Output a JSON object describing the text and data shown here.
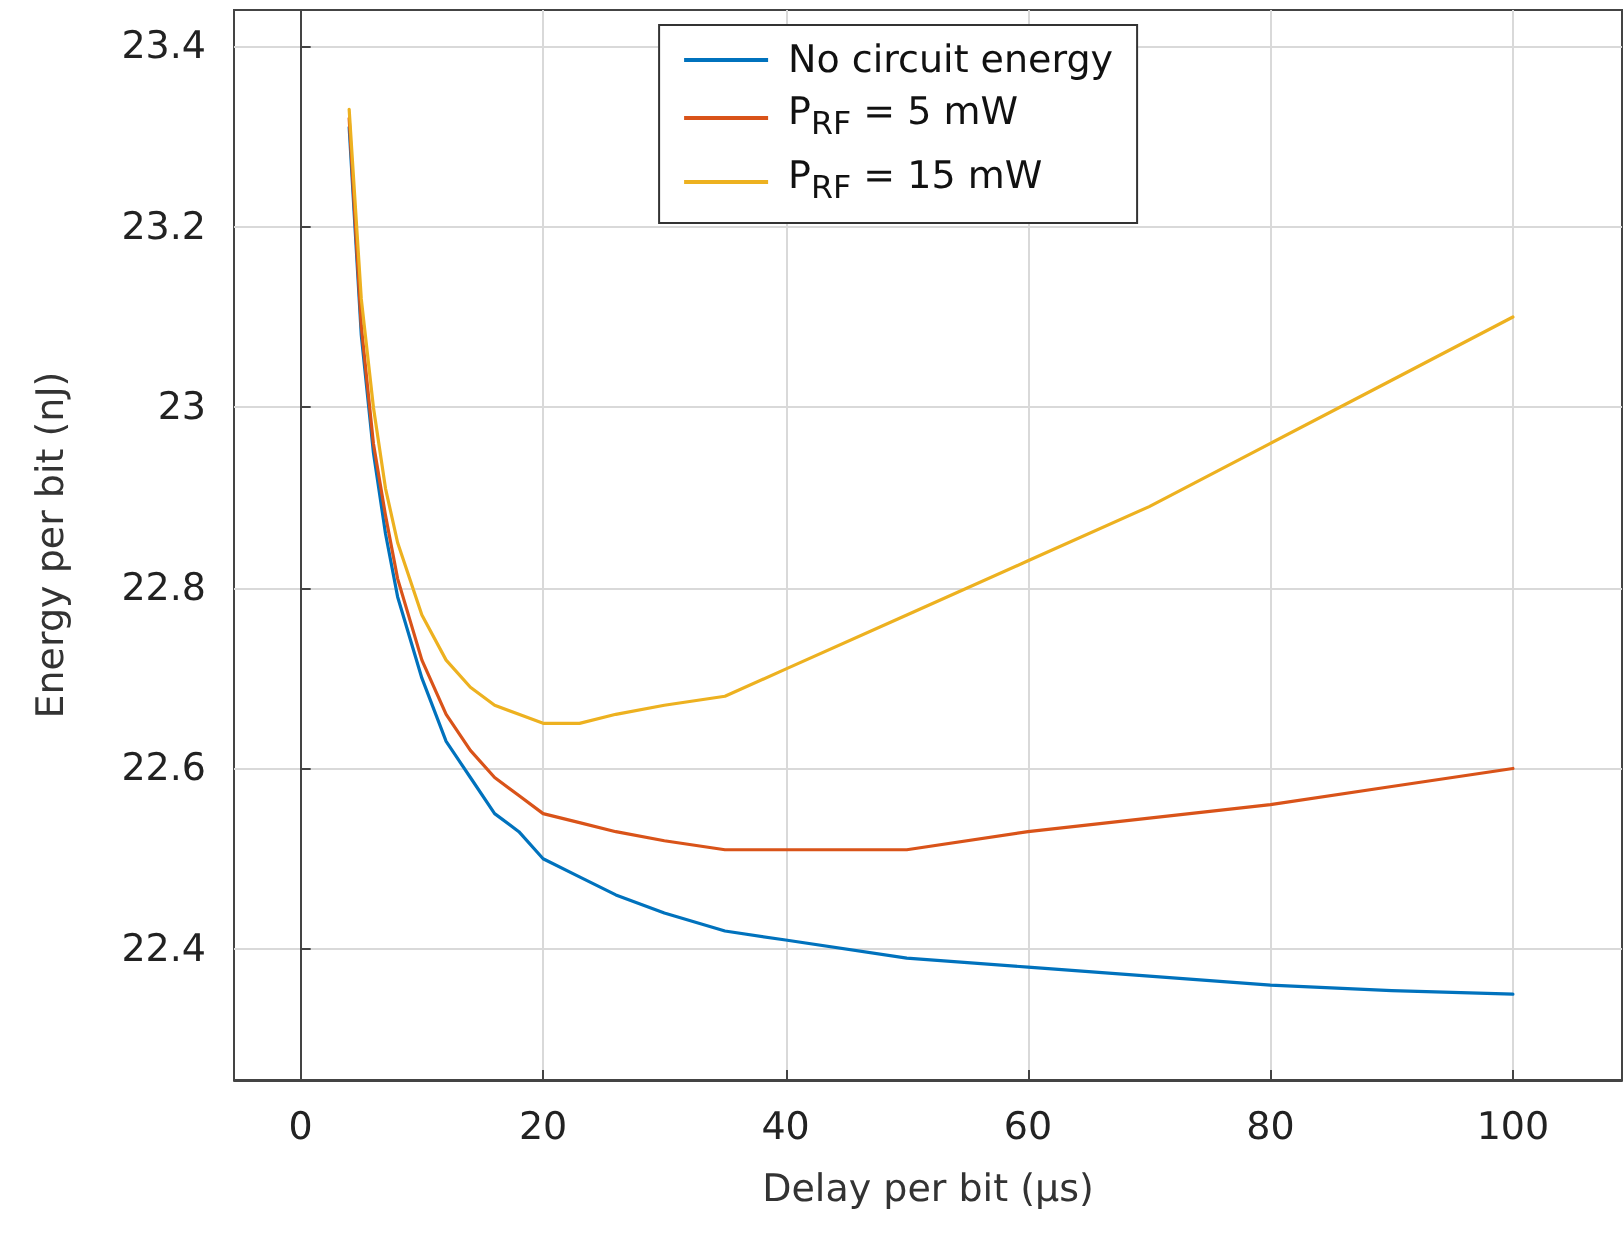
{
  "chart_data": {
    "type": "line",
    "xlabel": "Delay per bit (μs)",
    "ylabel": "Energy per bit (nJ)",
    "x": [
      4,
      5,
      6,
      7,
      8,
      10,
      12,
      14,
      16,
      18,
      20,
      23,
      26,
      30,
      35,
      40,
      50,
      60,
      70,
      80,
      90,
      100
    ],
    "series": [
      {
        "name": "No circuit energy",
        "color": "#0072bd",
        "values": [
          23.31,
          23.08,
          22.95,
          22.86,
          22.79,
          22.7,
          22.63,
          22.59,
          22.55,
          22.53,
          22.5,
          22.48,
          22.46,
          22.44,
          22.42,
          22.41,
          22.39,
          22.38,
          22.37,
          22.36,
          22.354,
          22.35
        ]
      },
      {
        "name": "P$_{RF}$ = 5 mW",
        "color": "#d95319",
        "values": [
          23.32,
          23.09,
          22.96,
          22.88,
          22.81,
          22.72,
          22.66,
          22.62,
          22.59,
          22.57,
          22.55,
          22.54,
          22.53,
          22.52,
          22.51,
          22.51,
          22.51,
          22.53,
          22.545,
          22.56,
          22.58,
          22.6
        ]
      },
      {
        "name": "P$_{RF}$ = 15 mW",
        "color": "#edb120",
        "values": [
          23.33,
          23.12,
          23.0,
          22.91,
          22.85,
          22.77,
          22.72,
          22.69,
          22.67,
          22.66,
          22.65,
          22.65,
          22.66,
          22.67,
          22.68,
          22.71,
          22.77,
          22.83,
          22.89,
          22.96,
          23.03,
          23.1
        ]
      }
    ],
    "xlim": [
      -5.5,
      109
    ],
    "ylim": [
      22.255,
      23.44
    ],
    "xticks": [
      0,
      20,
      40,
      60,
      80,
      100
    ],
    "yticks": [
      {
        "value": 22.4,
        "label": "22.4"
      },
      {
        "value": 22.6,
        "label": "22.6"
      },
      {
        "value": 22.8,
        "label": "22.8"
      },
      {
        "value": 23,
        "label": "23"
      },
      {
        "value": 23.2,
        "label": "23.2"
      },
      {
        "value": 23.4,
        "label": "23.4"
      }
    ],
    "grid": true,
    "legend": "top",
    "marker": "none",
    "line_style": "solid"
  }
}
